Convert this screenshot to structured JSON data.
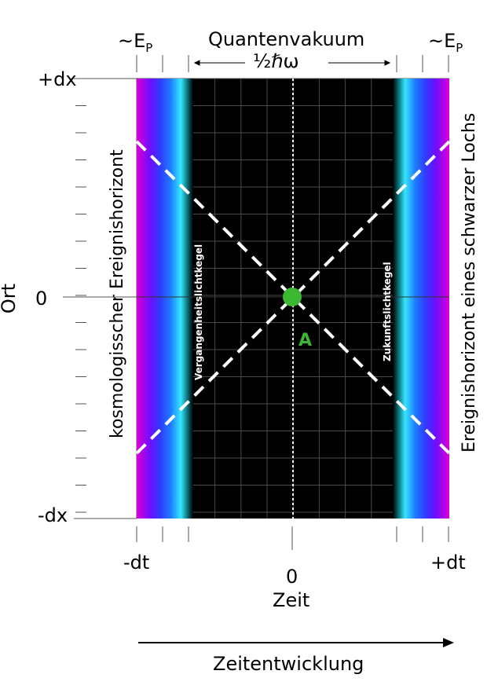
{
  "top": {
    "left_energy": "~E",
    "right_energy": "~E",
    "energy_sub": "P",
    "vacuum_title": "Quantenvakuum",
    "vacuum_energy": "½ℏω"
  },
  "y_axis": {
    "label": "Ort",
    "top_tick": "+dx",
    "zero_tick": "0",
    "bottom_tick": "-dx"
  },
  "x_axis": {
    "left_tick": "-dt",
    "zero_tick": "0",
    "right_tick": "+dt",
    "label": "Zeit"
  },
  "horizons": {
    "left": "kosmologisscher Ereignishorizont",
    "right": "Ereignishorizont eines schwarzer Lochs"
  },
  "cones": {
    "past": "Vergangenheitslichtkegel",
    "future": "Zukunftslichtkegel"
  },
  "event": {
    "label": "A",
    "color": "#3cb832"
  },
  "time_arrow": {
    "label": "Zeitentwicklung"
  },
  "colors": {
    "edge_magenta": "#e100d7",
    "edge_purple": "#7a00ff",
    "edge_blue": "#2f3cff",
    "edge_cyan": "#35e6ff",
    "vacuum": "#000000",
    "grid": "#555555",
    "cone_line": "#ffffff"
  }
}
